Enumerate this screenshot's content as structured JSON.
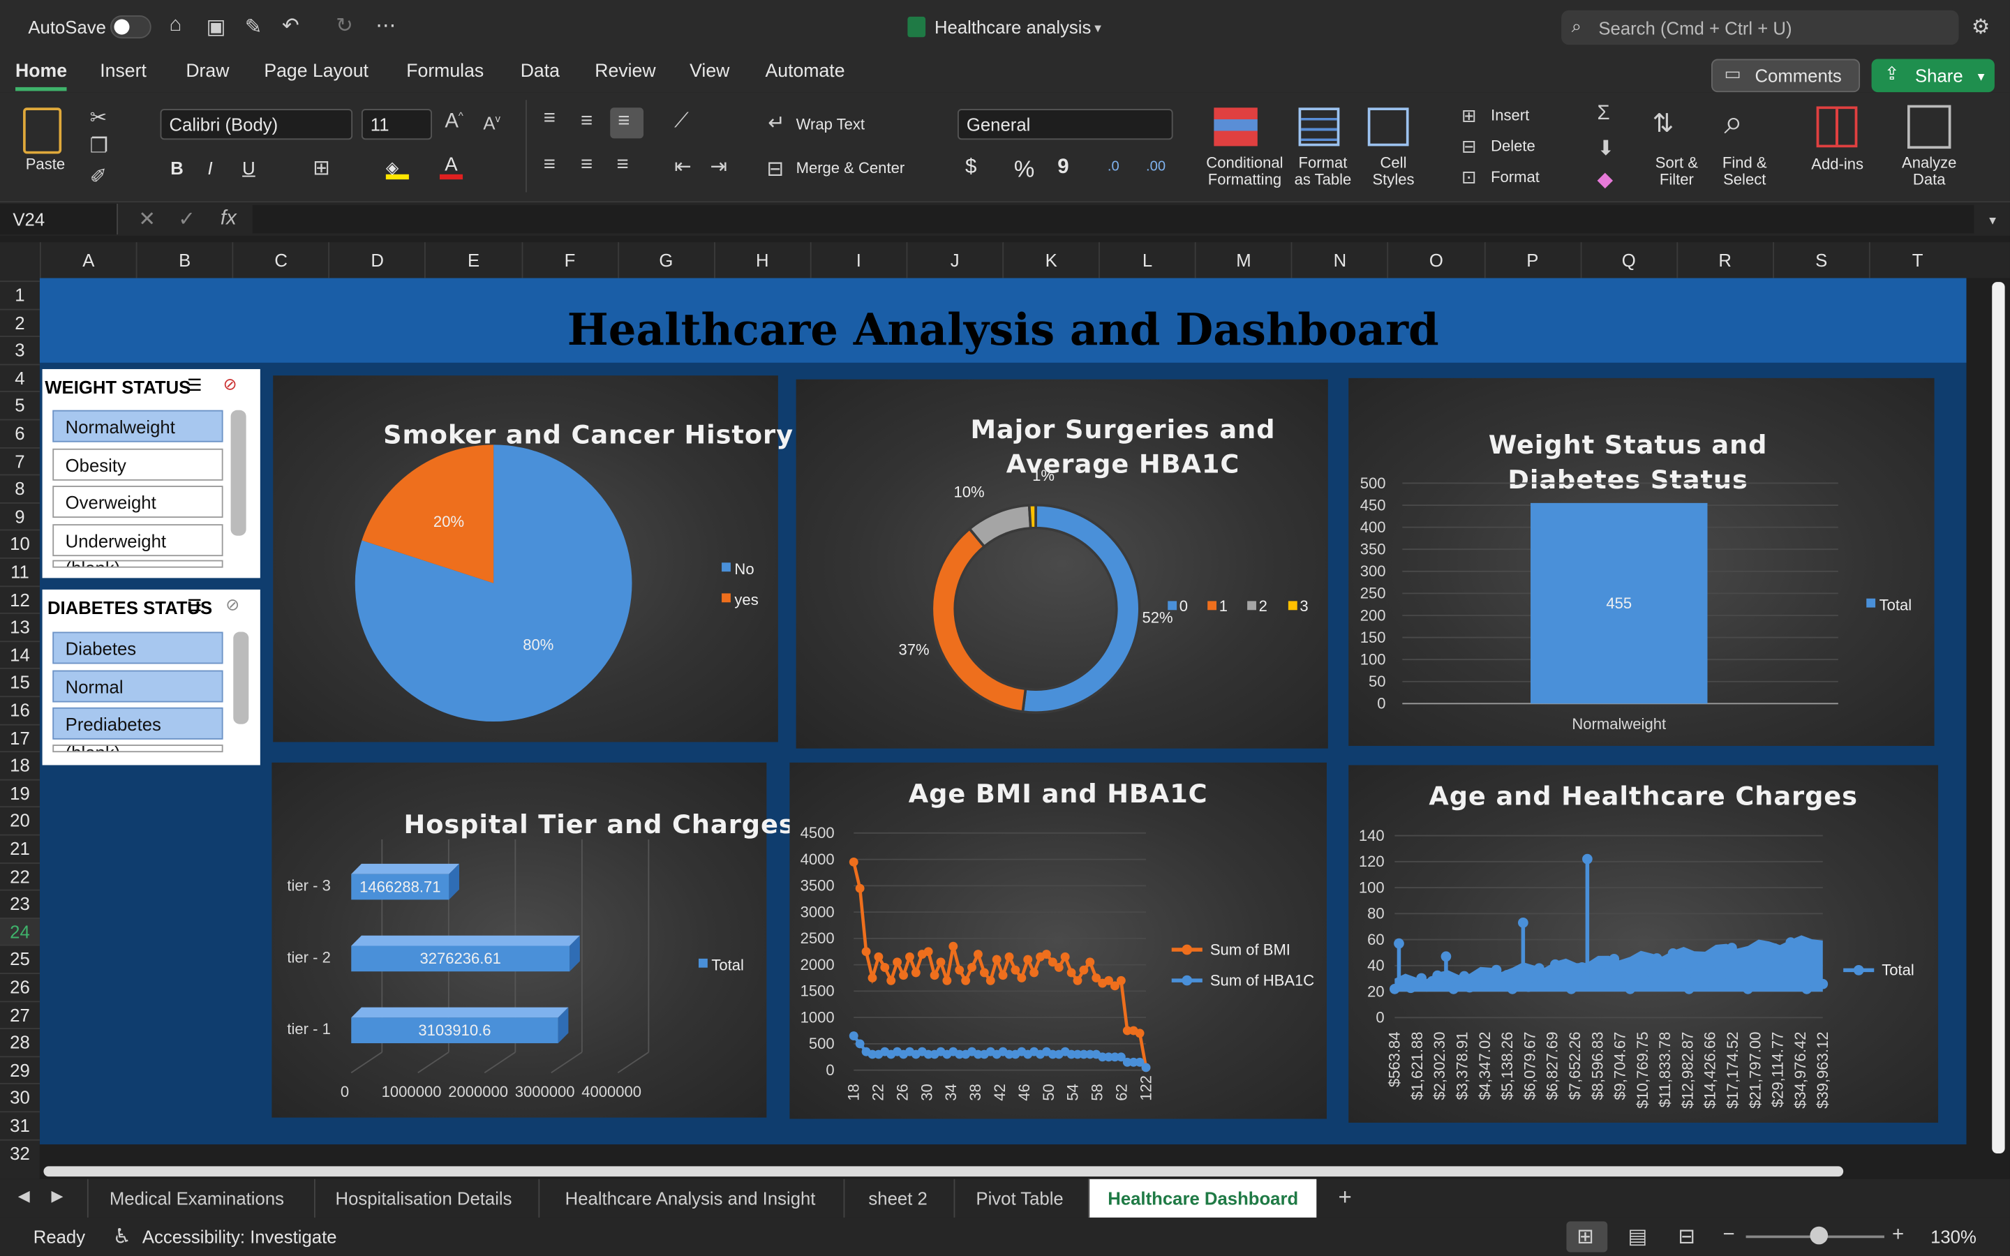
{
  "titlebar": {
    "autosave": "AutoSave",
    "doc_title": "Healthcare analysis",
    "search_placeholder": "Search (Cmd + Ctrl + U)"
  },
  "ribbon_tabs": [
    "Home",
    "Insert",
    "Draw",
    "Page Layout",
    "Formulas",
    "Data",
    "Review",
    "View",
    "Automate"
  ],
  "buttons": {
    "comments": "Comments",
    "share": "Share",
    "paste": "Paste",
    "font_name": "Calibri (Body)",
    "font_size": "11",
    "wrap_text": "Wrap Text",
    "merge_center": "Merge & Center",
    "number_format": "General",
    "cond_fmt_1": "Conditional",
    "cond_fmt_2": "Formatting",
    "fmt_table_1": "Format",
    "fmt_table_2": "as Table",
    "cell_styles_1": "Cell",
    "cell_styles_2": "Styles",
    "insert": "Insert",
    "delete": "Delete",
    "format": "Format",
    "sort_1": "Sort &",
    "sort_2": "Filter",
    "find_1": "Find &",
    "find_2": "Select",
    "addins": "Add-ins",
    "analyze_1": "Analyze",
    "analyze_2": "Data",
    "bold": "B",
    "italic": "I",
    "underline": "U",
    "currency": "$",
    "percent": "%",
    "comma": "9",
    "dec_inc": ".0",
    "dec_dec": ".00"
  },
  "formula_bar": {
    "name_box": "V24",
    "fx": "fx",
    "value": ""
  },
  "columns": [
    "A",
    "B",
    "C",
    "D",
    "E",
    "F",
    "G",
    "H",
    "I",
    "J",
    "K",
    "L",
    "M",
    "N",
    "O",
    "P",
    "Q",
    "R",
    "S",
    "T"
  ],
  "rows": [
    "1",
    "2",
    "3",
    "4",
    "5",
    "6",
    "7",
    "8",
    "9",
    "10",
    "11",
    "12",
    "13",
    "14",
    "15",
    "16",
    "17",
    "18",
    "19",
    "20",
    "21",
    "22",
    "23",
    "24",
    "25",
    "26",
    "27",
    "28",
    "29",
    "30",
    "31",
    "32"
  ],
  "dashboard": {
    "title": "Healthcare Analysis and Dashboard"
  },
  "slicers": {
    "weight": {
      "title": "WEIGHT STATUS",
      "items": [
        {
          "label": "Normalweight",
          "selected": true
        },
        {
          "label": "Obesity",
          "selected": false
        },
        {
          "label": "Overweight",
          "selected": false
        },
        {
          "label": "Underweight",
          "selected": false
        },
        {
          "label": "(blank)",
          "selected": false
        }
      ]
    },
    "diabetes": {
      "title": "DIABETES STATUS",
      "items": [
        {
          "label": "Diabetes",
          "selected": true
        },
        {
          "label": "Normal",
          "selected": true
        },
        {
          "label": "Prediabetes",
          "selected": true
        },
        {
          "label": "(blank)",
          "selected": false
        }
      ]
    }
  },
  "chart_data": [
    {
      "type": "pie",
      "title": "Smoker and Cancer History",
      "categories": [
        "No",
        "yes"
      ],
      "values": [
        80,
        20
      ],
      "data_labels": [
        "80%",
        "20%"
      ],
      "colors": [
        "#4a90d9",
        "#ee6f1d"
      ],
      "legend": "right"
    },
    {
      "type": "pie",
      "subtype": "doughnut",
      "title": "Major Surgeries and Average HBA1C",
      "categories": [
        "0",
        "1",
        "2",
        "3"
      ],
      "values": [
        52,
        37,
        10,
        1
      ],
      "data_labels": [
        "52%",
        "37%",
        "10%",
        "1%"
      ],
      "colors": [
        "#4a90d9",
        "#ee6f1d",
        "#a5a5a5",
        "#ffc000"
      ],
      "legend": "right"
    },
    {
      "type": "bar",
      "title": "Weight Status and Diabetes Status",
      "categories": [
        "Normalweight"
      ],
      "series": [
        {
          "name": "Total",
          "values": [
            455
          ]
        }
      ],
      "ylim": [
        0,
        500
      ],
      "yticks": [
        "0",
        "50",
        "100",
        "150",
        "200",
        "250",
        "300",
        "350",
        "400",
        "450",
        "500"
      ],
      "data_labels": [
        "455"
      ],
      "legend": "right"
    },
    {
      "type": "bar",
      "orientation": "horizontal",
      "title": "Hospital Tier and Charges",
      "categories": [
        "tier - 1",
        "tier - 2",
        "tier - 3"
      ],
      "series": [
        {
          "name": "Total",
          "values": [
            3103910.6,
            3276236.61,
            1466288.71
          ]
        }
      ],
      "data_labels": [
        "3103910.6",
        "3276236.61",
        "1466288.71"
      ],
      "xlim": [
        0,
        4000000
      ],
      "xticks": [
        "0",
        "1000000",
        "2000000",
        "3000000",
        "4000000"
      ],
      "legend": "right"
    },
    {
      "type": "line",
      "title": "Age BMI and HBA1C",
      "x": [
        18,
        19,
        20,
        21,
        22,
        23,
        24,
        25,
        26,
        27,
        28,
        29,
        30,
        31,
        32,
        33,
        34,
        35,
        36,
        37,
        38,
        39,
        40,
        41,
        42,
        43,
        44,
        45,
        46,
        47,
        48,
        49,
        50,
        51,
        52,
        53,
        54,
        55,
        56,
        57,
        58,
        59,
        60,
        61,
        62,
        63,
        64,
        122
      ],
      "xticks": [
        "18",
        "22",
        "26",
        "30",
        "34",
        "38",
        "42",
        "46",
        "50",
        "54",
        "58",
        "62",
        "122"
      ],
      "series": [
        {
          "name": "Sum of BMI",
          "values": [
            3950,
            3450,
            2250,
            1750,
            2150,
            1950,
            1700,
            2050,
            1800,
            2150,
            1850,
            2200,
            2250,
            1800,
            2050,
            1700,
            2350,
            1900,
            1700,
            1950,
            2200,
            1850,
            1700,
            2100,
            1800,
            2150,
            1900,
            1750,
            2100,
            1850,
            2150,
            2200,
            2050,
            1950,
            2150,
            1850,
            1700,
            1900,
            2050,
            1750,
            1650,
            1700,
            1600,
            1700,
            750,
            750,
            700,
            50
          ]
        },
        {
          "name": "Sum of HBA1C",
          "values": [
            650,
            500,
            350,
            300,
            300,
            350,
            300,
            350,
            300,
            350,
            300,
            350,
            300,
            300,
            350,
            300,
            350,
            300,
            300,
            350,
            300,
            300,
            350,
            300,
            350,
            300,
            300,
            350,
            300,
            350,
            300,
            350,
            300,
            300,
            350,
            300,
            300,
            300,
            300,
            300,
            250,
            250,
            250,
            250,
            150,
            150,
            150,
            50
          ]
        }
      ],
      "ylim": [
        0,
        4500
      ],
      "yticks": [
        "0",
        "500",
        "1000",
        "1500",
        "2000",
        "2500",
        "3000",
        "3500",
        "4000",
        "4500"
      ],
      "colors": [
        "#ee6f1d",
        "#4a90d9"
      ],
      "legend": "right"
    },
    {
      "type": "scatter",
      "title": "Age and Healthcare Charges",
      "xticks": [
        "$563.84",
        "$1,621.88",
        "$2,302.30",
        "$3,378.91",
        "$4,347.02",
        "$5,138.26",
        "$6,079.67",
        "$6,827.69",
        "$7,652.26",
        "$8,596.83",
        "$9,704.67",
        "$10,769.75",
        "$11,833.78",
        "$12,982.87",
        "$14,426.66",
        "$17,174.52",
        "$21,797.00",
        "$29,114.77",
        "$34,976.42",
        "$39,963.12"
      ],
      "series": [
        {
          "name": "Total",
          "note": "dense band of points between 20 and 65 with spikes"
        }
      ],
      "ylim": [
        0,
        140
      ],
      "yticks": [
        "0",
        "20",
        "40",
        "60",
        "80",
        "100",
        "120",
        "140"
      ],
      "spikes": [
        {
          "at": "$7,652.26",
          "value": 122
        },
        {
          "at": "$5,138.26",
          "value": 73
        }
      ],
      "legend": "right"
    }
  ],
  "sheet_tabs": [
    "Medical Examinations",
    "Hospitalisation Details",
    "Healthcare Analysis and Insight",
    "sheet 2",
    "Pivot Table",
    "Healthcare Dashboard"
  ],
  "active_sheet": "Healthcare Dashboard",
  "status": {
    "ready": "Ready",
    "accessibility": "Accessibility: Investigate",
    "zoom": "130%"
  }
}
